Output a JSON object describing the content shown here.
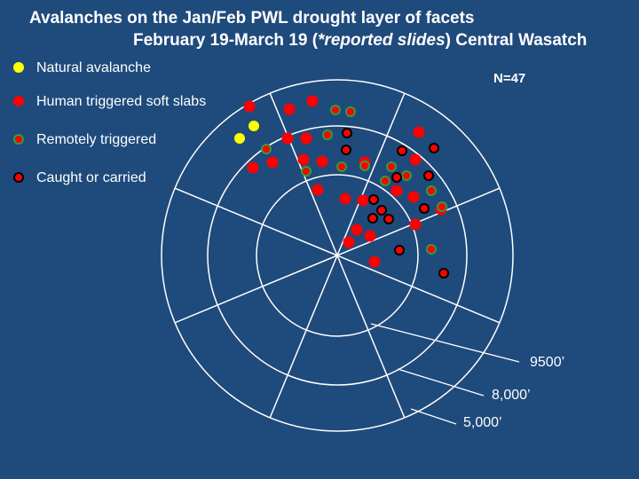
{
  "title": "Avalanches on the Jan/Feb PWL drought layer of facets",
  "subtitle_pre": "February 19-March 19 (",
  "subtitle_italic": "*reported slides",
  "subtitle_post": ") Central Wasatch",
  "count_label": "N=47",
  "legend": [
    {
      "label": "Natural avalanche",
      "fill": "#ffff00",
      "stroke": "#ffff00"
    },
    {
      "label": "Human triggered soft slabs",
      "fill": "#ff0000",
      "stroke": "#ff0000"
    },
    {
      "label": "Remotely triggered",
      "fill": "#ff0000",
      "stroke": "#2e9e3a"
    },
    {
      "label": "Caught or carried",
      "fill": "#ff0000",
      "stroke": "#000000"
    }
  ],
  "elevation_labels": [
    "9500’",
    "8,000’",
    "5,000’"
  ],
  "colors": {
    "background": "#1f4a7c",
    "lines": "#ffffff",
    "natural": "#ffff00",
    "human": "#ff0000",
    "remote_ring": "#2e9e3a",
    "caught_ring": "#000000"
  }
}
